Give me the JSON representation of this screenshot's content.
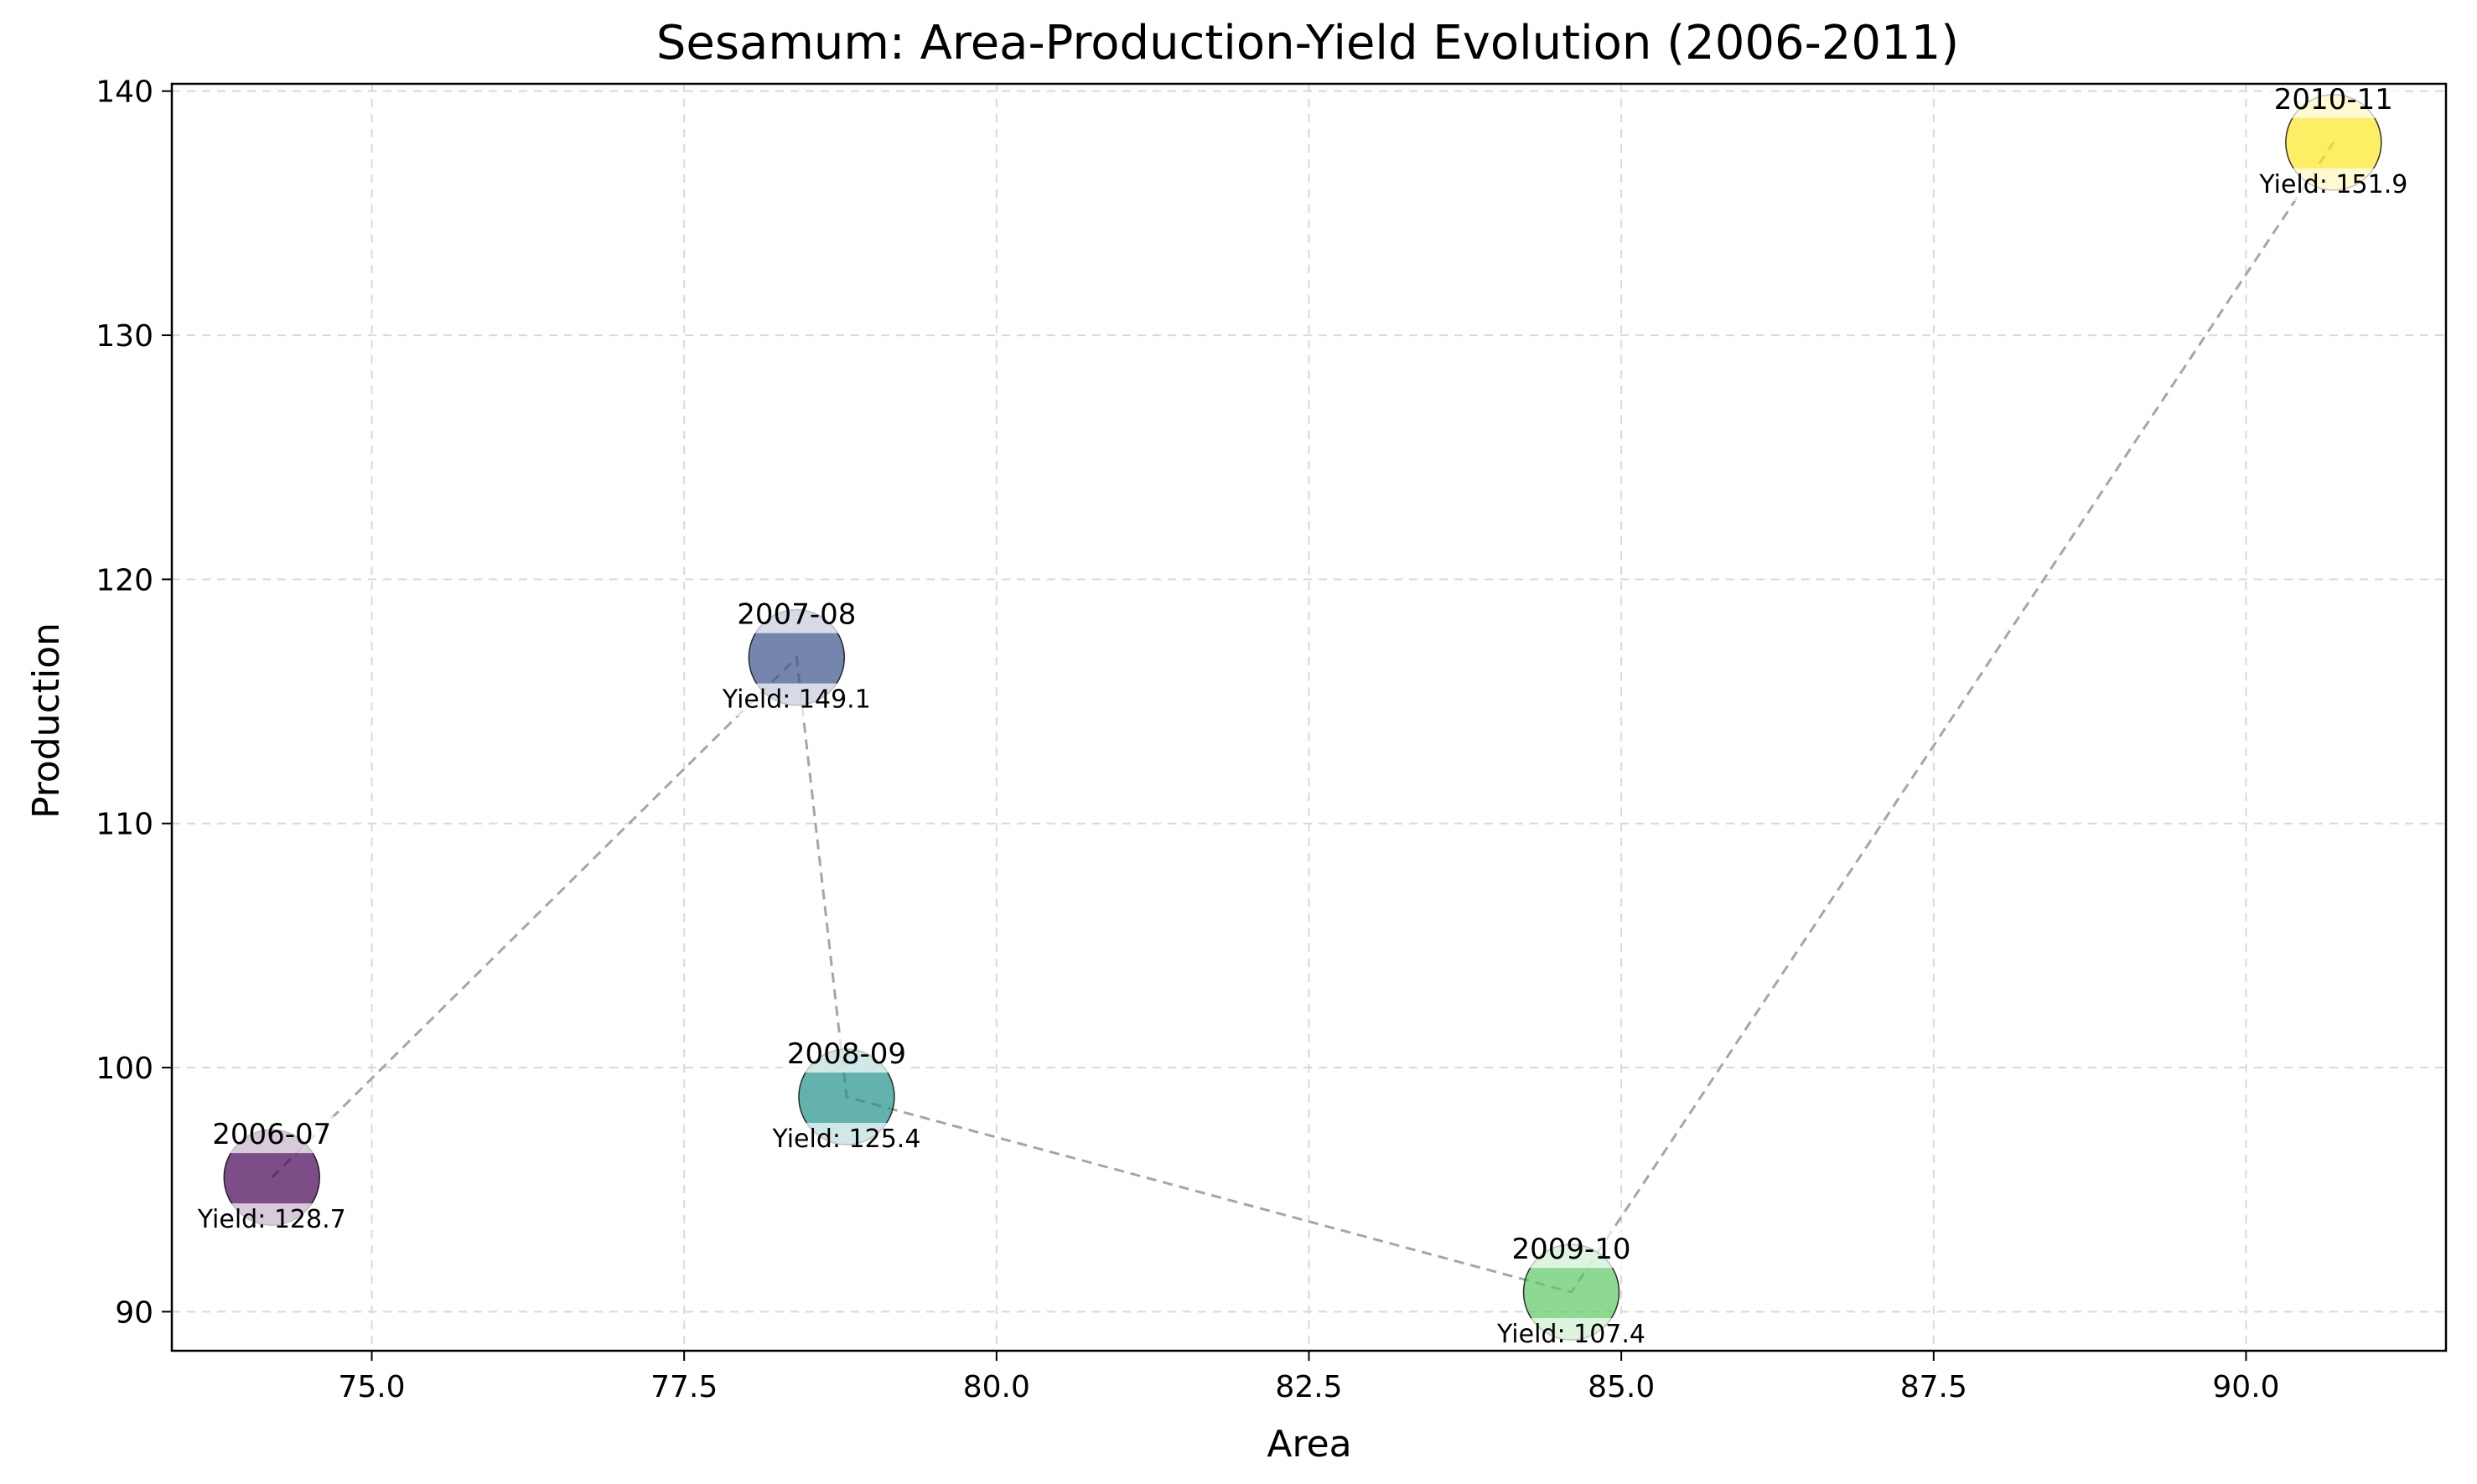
{
  "chart_data": {
    "type": "scatter",
    "title": "Sesamum: Area-Production-Yield Evolution (2006-2011)",
    "xlabel": "Area",
    "ylabel": "Production",
    "xlim": [
      73.4,
      91.6
    ],
    "ylim": [
      88.4,
      140.3
    ],
    "xticks": [
      75.0,
      77.5,
      80.0,
      82.5,
      85.0,
      87.5,
      90.0
    ],
    "yticks": [
      90,
      100,
      110,
      120,
      130,
      140
    ],
    "grid": true,
    "connector": "dashed",
    "colors": {
      "connector": "#a6a6a6",
      "frame": "#000000",
      "grid": "#d9d9d9"
    },
    "points": [
      {
        "label": "2006-07",
        "x": 74.2,
        "y": 95.5,
        "yield_text": "Yield: 128.7",
        "color": "#440154"
      },
      {
        "label": "2007-08",
        "x": 78.4,
        "y": 116.8,
        "yield_text": "Yield: 149.1",
        "color": "#3b528b"
      },
      {
        "label": "2008-09",
        "x": 78.8,
        "y": 98.8,
        "yield_text": "Yield: 125.4",
        "color": "#21918c"
      },
      {
        "label": "2009-10",
        "x": 84.6,
        "y": 90.8,
        "yield_text": "Yield: 107.4",
        "color": "#5ec962"
      },
      {
        "label": "2010-11",
        "x": 90.7,
        "y": 137.9,
        "yield_text": "Yield: 151.9",
        "color": "#fde725"
      }
    ]
  }
}
